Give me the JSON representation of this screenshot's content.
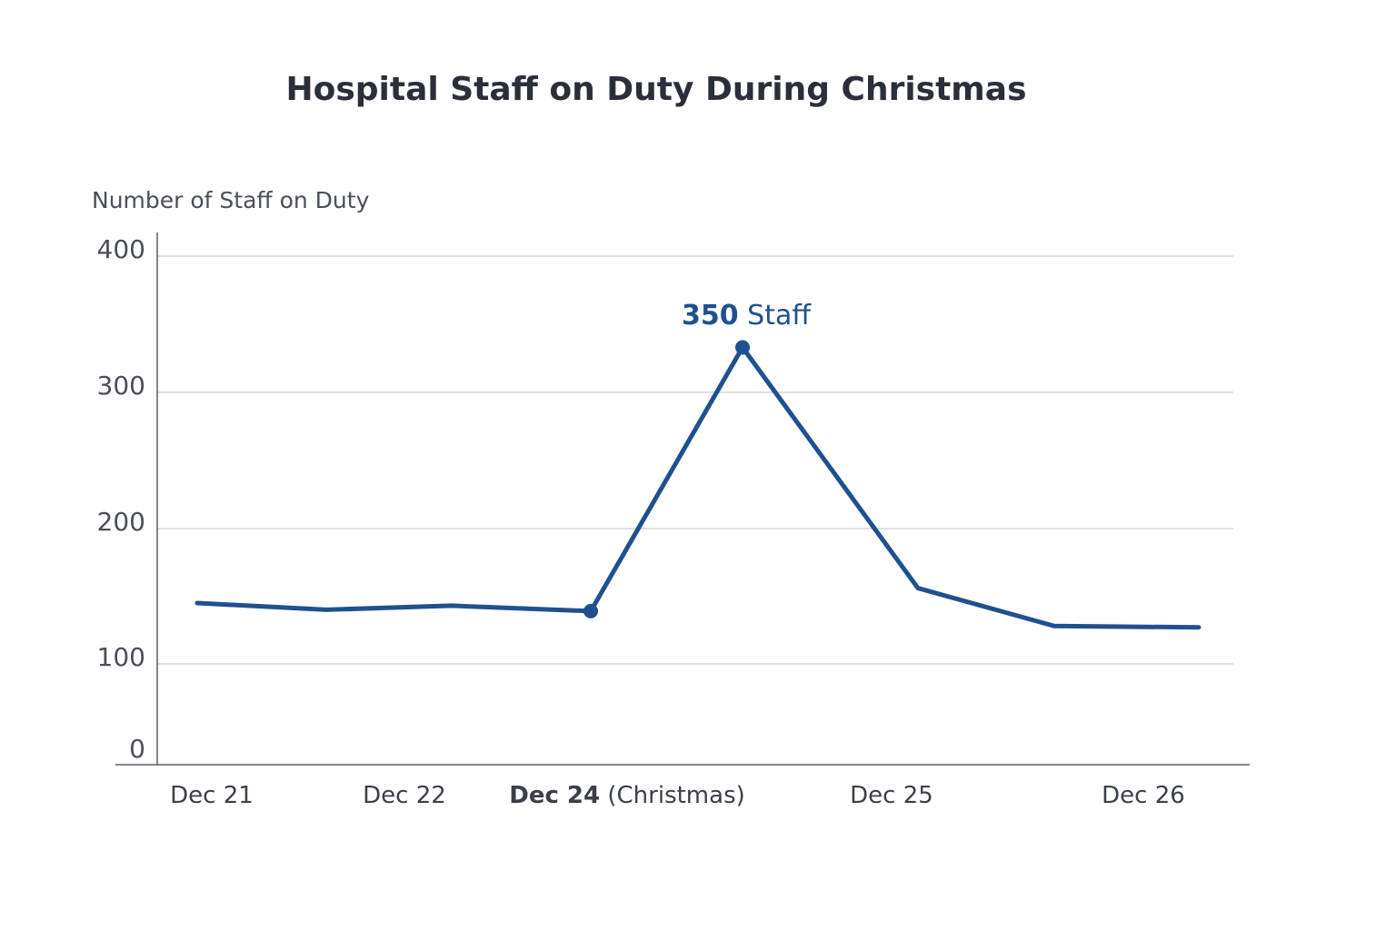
{
  "chart_data": {
    "type": "line",
    "title": "Hospital Staff on Duty During Christmas",
    "ylabel": "Number of Staff on Duty",
    "xlabel": "",
    "yticks": [
      0,
      100,
      200,
      300,
      400
    ],
    "ylim": [
      0,
      400
    ],
    "grid": true,
    "xtick_labels": [
      {
        "bold": "",
        "text": "Dec 21"
      },
      {
        "bold": "",
        "text": "Dec 22"
      },
      {
        "bold": "Dec 24",
        "text": " (Christmas)"
      },
      {
        "bold": "",
        "text": "Dec 25"
      },
      {
        "bold": "",
        "text": "Dec 26"
      }
    ],
    "series": [
      {
        "values": [
          145,
          140,
          143,
          139,
          333,
          156,
          128,
          127
        ],
        "color": "#1f5190",
        "markers_at": [
          3,
          4
        ]
      }
    ],
    "annotation": {
      "value": "350",
      "text": "Staff",
      "color": "#1f5190"
    }
  }
}
